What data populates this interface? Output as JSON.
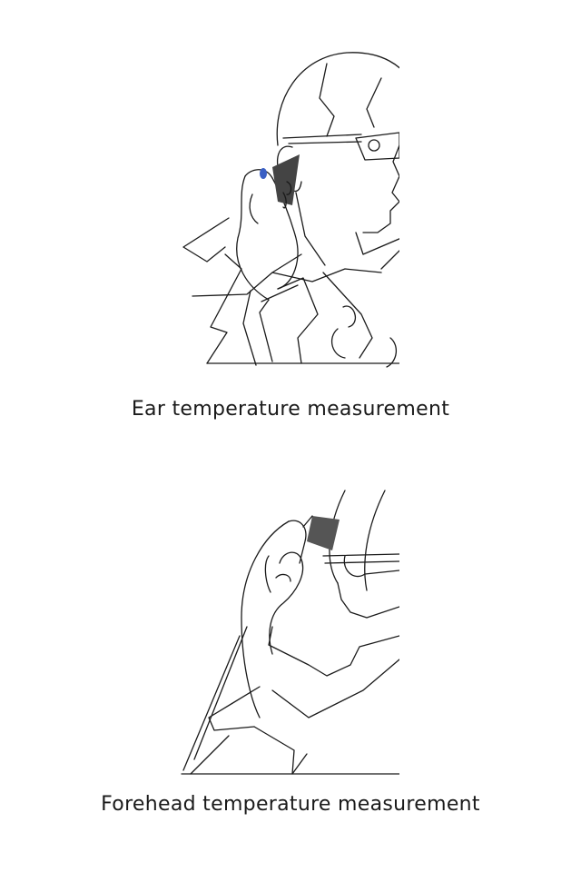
{
  "figures": [
    {
      "caption": "Ear temperature measurement",
      "icon": "ear-thermometer-illustration",
      "accent": "#3a5fc4"
    },
    {
      "caption": "Forehead temperature measurement",
      "icon": "forehead-thermometer-illustration",
      "accent": "#555555"
    }
  ]
}
